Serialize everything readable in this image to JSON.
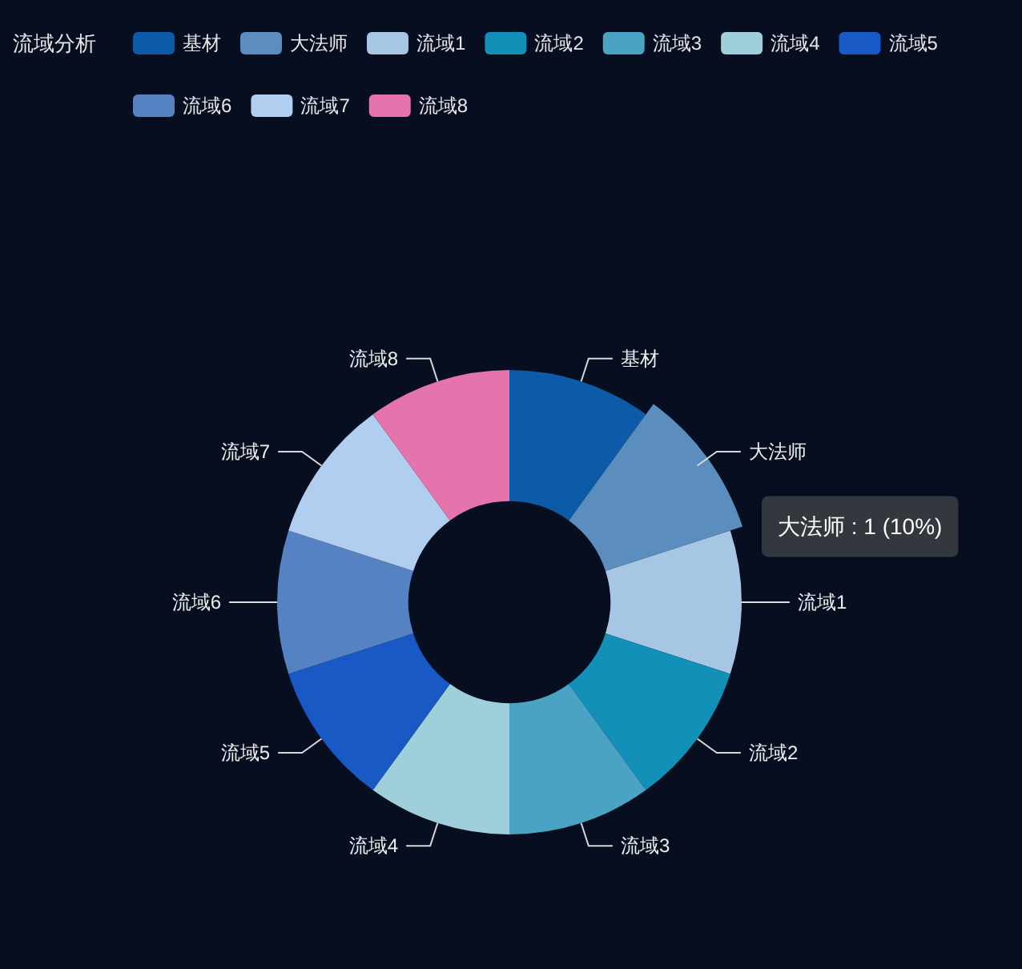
{
  "chart_data": {
    "type": "donut",
    "title": "流域分析",
    "categories": [
      "基材",
      "大法师",
      "流域1",
      "流域2",
      "流域3",
      "流域4",
      "流域5",
      "流域6",
      "流域7",
      "流域8"
    ],
    "values": [
      1,
      1,
      1,
      1,
      1,
      1,
      1,
      1,
      1,
      1
    ],
    "colors": [
      "#0b5ba8",
      "#5b8dbf",
      "#a6c6e4",
      "#1290b8",
      "#4aa3c3",
      "#9fcfda",
      "#1859c5",
      "#5482c2",
      "#b1cef0",
      "#e474ab"
    ],
    "legend": "top",
    "annotations": [
      {
        "text": "大法师 : 1 (10%)",
        "x": "大法师"
      }
    ]
  }
}
